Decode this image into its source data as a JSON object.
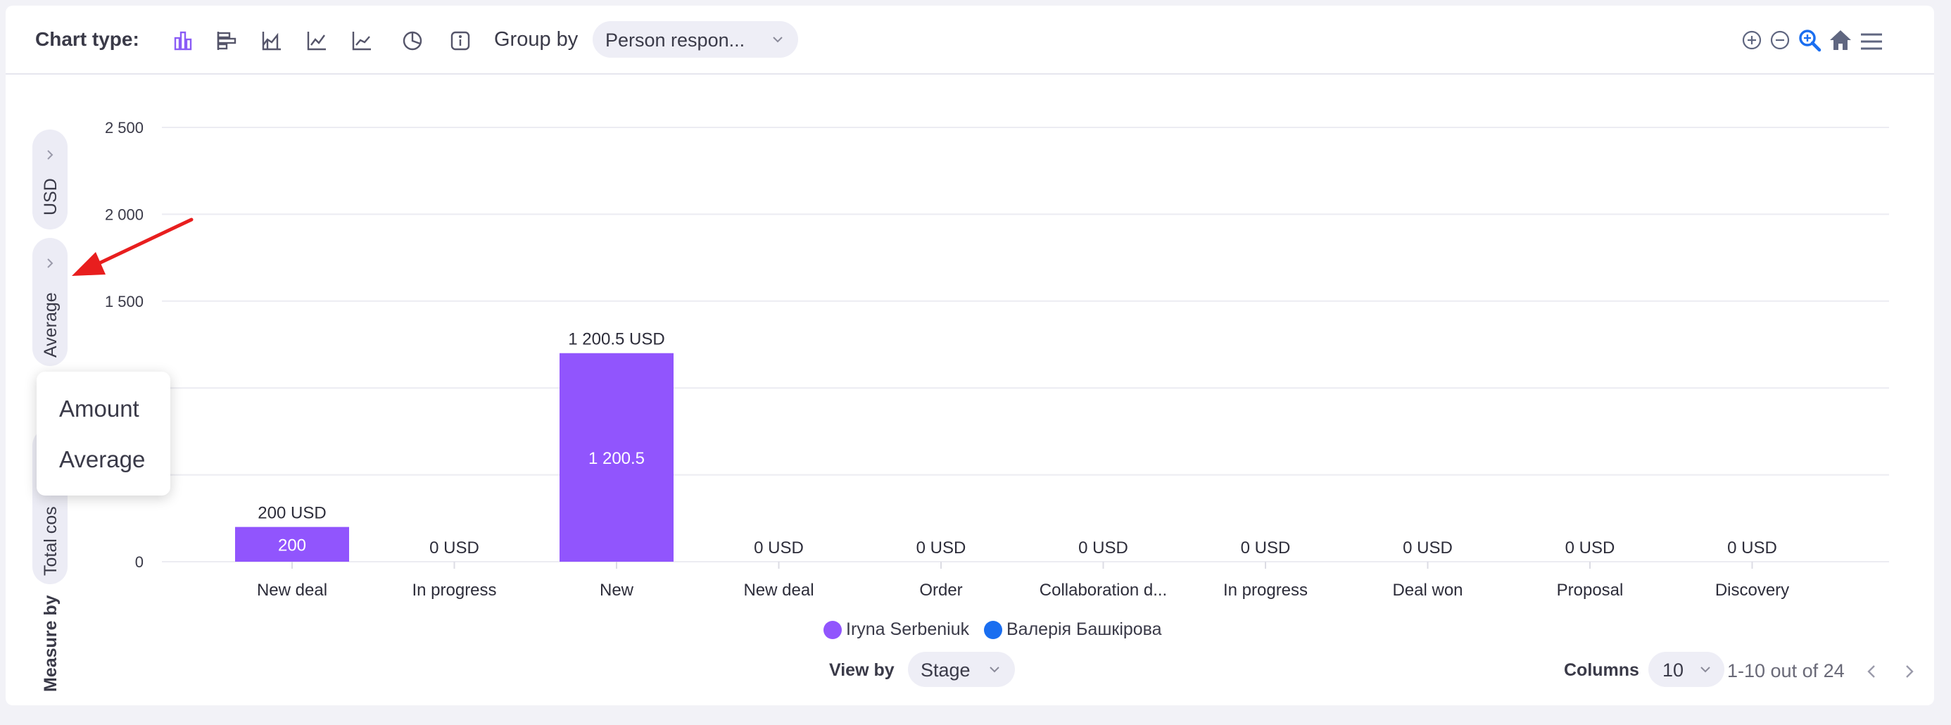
{
  "toolbar": {
    "chart_type_label": "Chart type:",
    "chart_type_icons": [
      "column-chart-icon",
      "bar-chart-icon",
      "area-chart-icon",
      "line-chart-icon",
      "stepline-chart-icon",
      "pie-chart-icon",
      "info-icon"
    ],
    "group_by_label": "Group by",
    "group_by_value": "Person respon...",
    "zoom_icons": [
      "zoom-in-icon",
      "zoom-out-icon",
      "selection-zoom-icon",
      "reset-home-icon",
      "menu-icon"
    ]
  },
  "side_controls": {
    "currency": "USD",
    "aggregation": "Average",
    "measure_value": "Total cos",
    "measure_label": "Measure by"
  },
  "dropdown": {
    "items": [
      "Amount",
      "Average"
    ]
  },
  "colors": {
    "series_1": "#9155fd",
    "series_2": "#1a6ef0",
    "accent": "#8a5cf6",
    "arrow": "#e81e1e"
  },
  "chart_data": {
    "type": "bar",
    "categories": [
      "New deal",
      "In progress",
      "New",
      "New deal",
      "Order",
      "Collaboration d...",
      "In progress",
      "Deal won",
      "Proposal",
      "Discovery"
    ],
    "series": [
      {
        "name": "Iryna Serbeniuk",
        "values": [
          200,
          0,
          1200.5,
          0,
          0,
          0,
          0,
          0,
          0,
          0
        ]
      },
      {
        "name": "Валерія Башкірова",
        "values": [
          0,
          0,
          0,
          0,
          0,
          0,
          0,
          0,
          0,
          0
        ]
      }
    ],
    "total_labels": [
      "200 USD",
      "0 USD",
      "1 200.5 USD",
      "0 USD",
      "0 USD",
      "0 USD",
      "0 USD",
      "0 USD",
      "0 USD",
      "0 USD"
    ],
    "inner_labels": [
      "200",
      "",
      "1 200.5",
      "",
      "",
      "",
      "",
      "",
      "",
      ""
    ],
    "y_ticks": [
      0,
      1500,
      2000,
      2500
    ],
    "y_tick_labels": [
      "0",
      "1 500",
      "2 000",
      "2 500"
    ],
    "ylim": [
      0,
      2500
    ],
    "grid": true,
    "legend_position": "bottom"
  },
  "footer": {
    "view_by_label": "View by",
    "view_by_value": "Stage",
    "columns_label": "Columns",
    "columns_value": "10",
    "pagination_text": "1-10 out of 24"
  }
}
